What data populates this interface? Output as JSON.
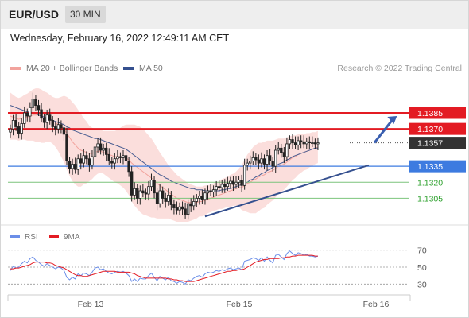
{
  "header": {
    "pair": "EUR/USD",
    "timeframe": "30 MIN",
    "datetime": "Wednesday, February 16, 2022 12:49:11 AM CET"
  },
  "legend": {
    "ma20_label": "MA 20 + Bollinger Bands",
    "ma50_label": "MA 50",
    "credit": "Research © 2022 Trading Central"
  },
  "rsi_legend": {
    "rsi_label": "RSI",
    "ma9_label": "9MA"
  },
  "colors": {
    "resistance": "#e31b23",
    "support": "#3d7be0",
    "pivot": "#333333",
    "minor": "#2ca02c",
    "trendline": "#35508f",
    "bands": "#f9d3d0",
    "ma20": "#f2a39d",
    "ma50": "#4a5e92",
    "candle": "#222222",
    "rsi": "#6b8ee8",
    "ma9": "#e31b23"
  },
  "chart_data": [
    {
      "type": "candlestick",
      "x_tick_labels": [
        "Feb 13",
        "Feb 15",
        "Feb 16"
      ],
      "ylim": [
        1.128,
        1.142
      ],
      "levels": [
        {
          "label": "1.1385",
          "value": 1.1385,
          "kind": "resistance"
        },
        {
          "label": "1.1370",
          "value": 1.137,
          "kind": "resistance"
        },
        {
          "label": "1.1357",
          "value": 1.1357,
          "kind": "pivot"
        },
        {
          "label": "1.1335",
          "value": 1.1335,
          "kind": "support"
        },
        {
          "label": "1.1320",
          "value": 1.132,
          "kind": "minor"
        },
        {
          "label": "1.1305",
          "value": 1.1305,
          "kind": "minor"
        }
      ],
      "close": [
        1.137,
        1.1378,
        1.1372,
        1.1366,
        1.1375,
        1.1385,
        1.1382,
        1.139,
        1.1398,
        1.1392,
        1.1388,
        1.138,
        1.1376,
        1.1383,
        1.1378,
        1.1372,
        1.137,
        1.1374,
        1.1371,
        1.1365,
        1.134,
        1.1333,
        1.1337,
        1.1332,
        1.1342,
        1.1338,
        1.1345,
        1.1342,
        1.1336,
        1.1344,
        1.1353,
        1.1356,
        1.135,
        1.1352,
        1.1346,
        1.134,
        1.1338,
        1.1342,
        1.1344,
        1.1343,
        1.1345,
        1.134,
        1.133,
        1.1308,
        1.1314,
        1.1305,
        1.1312,
        1.131,
        1.1309,
        1.1316,
        1.1322,
        1.131,
        1.13,
        1.1312,
        1.1305,
        1.1302,
        1.1308,
        1.1299,
        1.1296,
        1.1294,
        1.1297,
        1.1295,
        1.129,
        1.13,
        1.1298,
        1.1302,
        1.1305,
        1.1307,
        1.1304,
        1.131,
        1.1312,
        1.1311,
        1.1313,
        1.1316,
        1.1315,
        1.1318,
        1.1316,
        1.1319,
        1.1321,
        1.1318,
        1.132,
        1.1322,
        1.1317,
        1.1336,
        1.1338,
        1.134,
        1.1343,
        1.1341,
        1.1338,
        1.1342,
        1.1337,
        1.1345,
        1.134,
        1.1335,
        1.135,
        1.1352,
        1.1348,
        1.1344,
        1.1356,
        1.136,
        1.1357,
        1.1355,
        1.1359,
        1.1358,
        1.1356,
        1.1358,
        1.1357,
        1.1357,
        1.1356,
        1.1357
      ],
      "ma20": [
        1.1382,
        1.1381,
        1.138,
        1.1379,
        1.138,
        1.1381,
        1.1381,
        1.1382,
        1.1383,
        1.1383,
        1.1383,
        1.1382,
        1.1381,
        1.1381,
        1.138,
        1.1378,
        1.1376,
        1.1374,
        1.1372,
        1.137,
        1.1366,
        1.1362,
        1.1358,
        1.1355,
        1.1352,
        1.135,
        1.1349,
        1.1348,
        1.1347,
        1.1347,
        1.1348,
        1.1349,
        1.1349,
        1.1348,
        1.1347,
        1.1346,
        1.1345,
        1.1344,
        1.1344,
        1.1344,
        1.1344,
        1.1343,
        1.1341,
        1.1338,
        1.1336,
        1.1334,
        1.1332,
        1.133,
        1.1328,
        1.1326,
        1.1324,
        1.1322,
        1.1319,
        1.1317,
        1.1315,
        1.1313,
        1.1311,
        1.1309,
        1.1307,
        1.1305,
        1.1304,
        1.1303,
        1.1302,
        1.1301,
        1.1301,
        1.1301,
        1.1301,
        1.1302,
        1.1302,
        1.1303,
        1.1304,
        1.1305,
        1.1306,
        1.1307,
        1.1308,
        1.1309,
        1.131,
        1.1311,
        1.1312,
        1.1313,
        1.1314,
        1.1315,
        1.1315,
        1.1317,
        1.1319,
        1.132,
        1.1322,
        1.1323,
        1.1325,
        1.1326,
        1.1327,
        1.1329,
        1.133,
        1.1331,
        1.1333,
        1.1335,
        1.1336,
        1.1337,
        1.1339,
        1.1341,
        1.1343,
        1.1344,
        1.1346,
        1.1347,
        1.1348,
        1.1349,
        1.135,
        1.1351,
        1.1352,
        1.1353
      ],
      "ma50": [
        1.1392,
        1.1391,
        1.139,
        1.1389,
        1.1388,
        1.1387,
        1.1386,
        1.1386,
        1.1385,
        1.1384,
        1.1383,
        1.1382,
        1.1381,
        1.138,
        1.1379,
        1.1378,
        1.1377,
        1.1376,
        1.1375,
        1.1374,
        1.1372,
        1.1371,
        1.1369,
        1.1368,
        1.1367,
        1.1366,
        1.1365,
        1.1364,
        1.1363,
        1.1362,
        1.1361,
        1.1361,
        1.136,
        1.1359,
        1.1358,
        1.1357,
        1.1356,
        1.1355,
        1.1354,
        1.1353,
        1.1352,
        1.1351,
        1.1349,
        1.1347,
        1.1345,
        1.1343,
        1.1341,
        1.1339,
        1.1337,
        1.1335,
        1.1333,
        1.1331,
        1.1329,
        1.1327,
        1.1326,
        1.1324,
        1.1323,
        1.1321,
        1.132,
        1.1319,
        1.1318,
        1.1317,
        1.1316,
        1.1315,
        1.1314,
        1.1314,
        1.1313,
        1.1313,
        1.1313,
        1.1312,
        1.1312,
        1.1312,
        1.1312,
        1.1312,
        1.1312,
        1.1313,
        1.1313,
        1.1314,
        1.1314,
        1.1315,
        1.1316,
        1.1317,
        1.1318,
        1.1319,
        1.132,
        1.1322,
        1.1323,
        1.1325,
        1.1326,
        1.1328,
        1.1329,
        1.1331,
        1.1332,
        1.1334,
        1.1335,
        1.1337,
        1.1338,
        1.1339,
        1.1341,
        1.1342,
        1.1344,
        1.1345,
        1.1346,
        1.1347,
        1.1348,
        1.1349,
        1.135,
        1.1351,
        1.1352,
        1.1352
      ],
      "band_width": [
        0.0022,
        0.0021,
        0.002,
        0.002,
        0.002,
        0.0021,
        0.0022,
        0.0023,
        0.0024,
        0.0025,
        0.0025,
        0.0025,
        0.0024,
        0.0023,
        0.0022,
        0.0022,
        0.0023,
        0.0025,
        0.0028,
        0.0031,
        0.0034,
        0.0036,
        0.0037,
        0.0037,
        0.0036,
        0.0034,
        0.0031,
        0.0029,
        0.0026,
        0.0024,
        0.0022,
        0.0021,
        0.002,
        0.002,
        0.0021,
        0.0022,
        0.0023,
        0.0024,
        0.0025,
        0.0027,
        0.0029,
        0.0031,
        0.0033,
        0.0036,
        0.0038,
        0.0039,
        0.004,
        0.004,
        0.0039,
        0.0038,
        0.0037,
        0.0035,
        0.0033,
        0.0031,
        0.0029,
        0.0027,
        0.0025,
        0.0024,
        0.0023,
        0.0022,
        0.0021,
        0.002,
        0.0019,
        0.0018,
        0.0017,
        0.0016,
        0.0015,
        0.0014,
        0.0014,
        0.0014,
        0.0013,
        0.0013,
        0.0013,
        0.0013,
        0.0013,
        0.0014,
        0.0014,
        0.0014,
        0.0015,
        0.0015,
        0.0016,
        0.0018,
        0.0021,
        0.0024,
        0.0027,
        0.0029,
        0.0031,
        0.0032,
        0.0032,
        0.0031,
        0.0031,
        0.003,
        0.0029,
        0.0028,
        0.0027,
        0.0026,
        0.0025,
        0.0024,
        0.0023,
        0.0022,
        0.0021,
        0.002,
        0.0019,
        0.0018,
        0.0017,
        0.0017,
        0.0016,
        0.0016,
        0.0015,
        0.0015,
        0.0015,
        0.0015
      ],
      "trendline": [
        {
          "i": 69,
          "v": 1.1288
        },
        {
          "i": 127,
          "v": 1.1336
        }
      ],
      "forecast_arrow": [
        {
          "i": 129,
          "v": 1.1357
        },
        {
          "i": 137,
          "v": 1.1382
        }
      ]
    },
    {
      "type": "line",
      "ylim": [
        20,
        80
      ],
      "y_tick_labels": [
        "70",
        "50",
        "30"
      ],
      "y_ticks": [
        70,
        50,
        30
      ],
      "series": [
        {
          "name": "RSI",
          "values": [
            46,
            51,
            49,
            50,
            54,
            57,
            55,
            60,
            62,
            58,
            56,
            53,
            51,
            54,
            52,
            50,
            48,
            50,
            49,
            46,
            38,
            35,
            38,
            36,
            42,
            40,
            43,
            42,
            40,
            44,
            49,
            50,
            47,
            48,
            45,
            43,
            42,
            44,
            45,
            44,
            45,
            43,
            40,
            33,
            36,
            33,
            37,
            36,
            36,
            40,
            43,
            38,
            34,
            39,
            37,
            35,
            38,
            34,
            33,
            31,
            33,
            32,
            30,
            35,
            34,
            37,
            39,
            40,
            38,
            42,
            44,
            43,
            44,
            46,
            45,
            47,
            46,
            48,
            49,
            47,
            48,
            49,
            47,
            57,
            58,
            59,
            61,
            60,
            58,
            61,
            57,
            62,
            58,
            55,
            64,
            65,
            62,
            59,
            66,
            69,
            66,
            64,
            67,
            66,
            64,
            65,
            63,
            63,
            62,
            63
          ]
        },
        {
          "name": "9MA",
          "values": [
            48,
            48,
            49,
            49,
            50,
            51,
            52,
            53,
            55,
            56,
            56,
            56,
            56,
            55,
            55,
            54,
            52,
            51,
            50,
            49,
            47,
            45,
            43,
            41,
            40,
            40,
            39,
            39,
            40,
            41,
            42,
            43,
            44,
            45,
            45,
            45,
            45,
            45,
            44,
            44,
            44,
            44,
            44,
            43,
            42,
            40,
            39,
            38,
            37,
            37,
            37,
            37,
            37,
            37,
            37,
            37,
            36,
            36,
            35,
            35,
            34,
            34,
            33,
            33,
            33,
            33,
            34,
            35,
            36,
            37,
            38,
            39,
            40,
            41,
            42,
            43,
            44,
            45,
            45,
            46,
            46,
            47,
            47,
            48,
            50,
            52,
            54,
            56,
            57,
            58,
            59,
            59,
            60,
            60,
            60,
            60,
            61,
            61,
            62,
            62,
            63,
            63,
            64,
            64,
            64,
            64,
            64,
            64,
            63,
            63
          ]
        }
      ]
    }
  ]
}
